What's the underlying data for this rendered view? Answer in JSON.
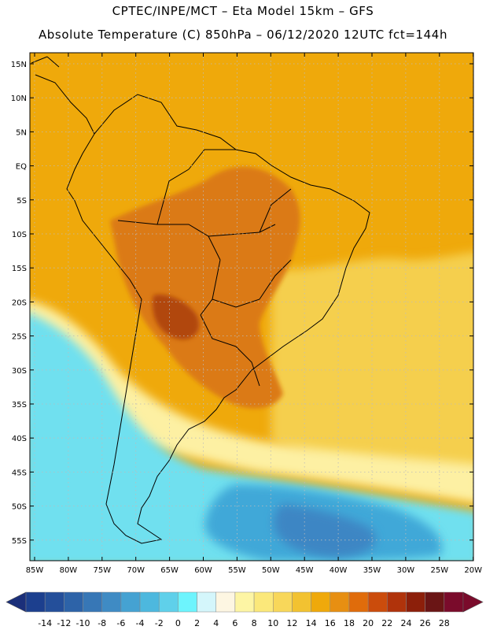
{
  "header": {
    "line1": "CPTEC/INPE/MCT –  Eta Model 15km – GFS",
    "line2": "Absolute Temperature (C) 850hPa – 06/12/2020 12UTC fct=144h"
  },
  "map": {
    "lat_labels": [
      "15N",
      "10N",
      "5N",
      "EQ",
      "5S",
      "10S",
      "15S",
      "20S",
      "25S",
      "30S",
      "35S",
      "40S",
      "45S",
      "50S",
      "55S"
    ],
    "lon_labels": [
      "85W",
      "80W",
      "75W",
      "70W",
      "65W",
      "60W",
      "55W",
      "50W",
      "45W",
      "40W",
      "35W",
      "30W",
      "25W",
      "20W"
    ],
    "colors": {
      "ocean_tropical": "#efa90b",
      "hot_interior": "#db7a18",
      "hottest_core": "#b1460b",
      "subtropical_ocean": "#f5cf4d",
      "mild_band": "#fdf0a3",
      "cold_band": "#6fe0ef",
      "cold_core": "#3fa8d8",
      "coldest": "#3d86c4",
      "land_outline": "#000000"
    }
  },
  "colorbar": {
    "tick_labels": [
      "-14",
      "-12",
      "-10",
      "-8",
      "-6",
      "-4",
      "-2",
      "0",
      "2",
      "4",
      "6",
      "8",
      "10",
      "12",
      "14",
      "16",
      "18",
      "20",
      "22",
      "24",
      "26",
      "28"
    ],
    "colors": [
      "#1c3f8e",
      "#244f9a",
      "#2d63a8",
      "#3777b6",
      "#3f8bc4",
      "#45a2d2",
      "#4db8de",
      "#5fd0ea",
      "#6df4fd",
      "#d4f6fb",
      "#fdf6e2",
      "#fdf5a4",
      "#fbe87a",
      "#f8d75a",
      "#f2c231",
      "#efa90b",
      "#e78f12",
      "#e06c0b",
      "#cb4c0c",
      "#b0330b",
      "#8c1f0a",
      "#6a1515",
      "#7a0b2b"
    ],
    "min_arrow_color": "#1b2f7a",
    "max_arrow_color": "#7a0b2b"
  }
}
